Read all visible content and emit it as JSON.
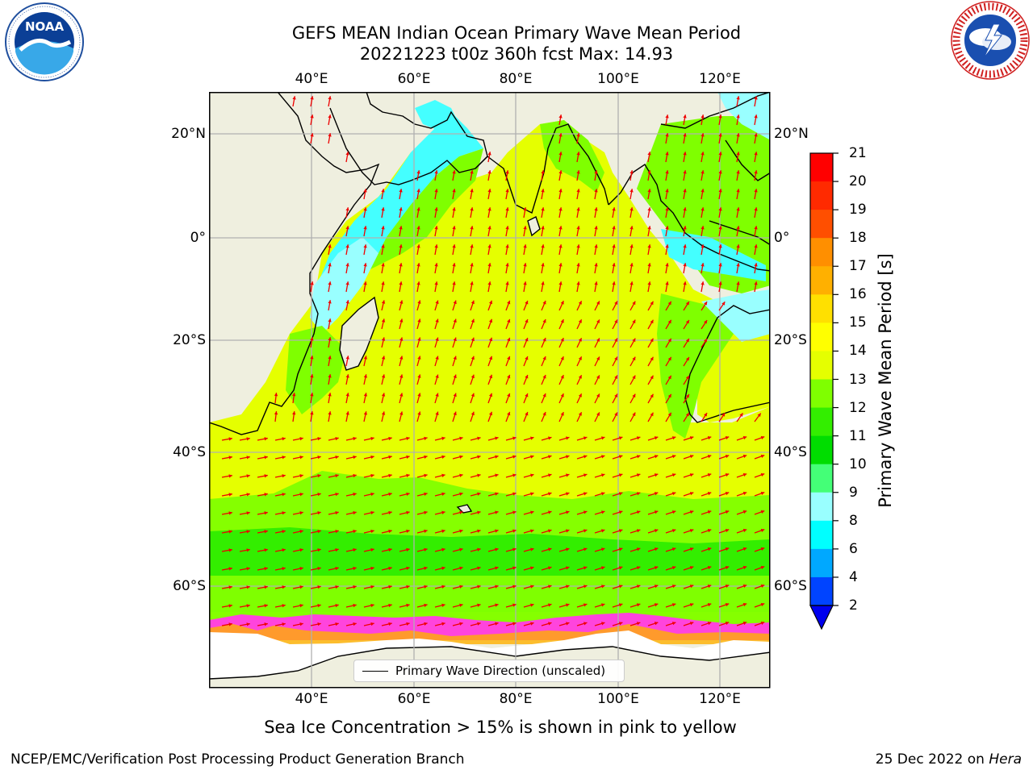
{
  "title": {
    "line1": "GEFS MEAN Indian Ocean Primary Wave Mean Period",
    "line2": "20221223 t00z 360h fcst   Max: 14.93"
  },
  "axes": {
    "lon_ticks": [
      "40°E",
      "60°E",
      "80°E",
      "100°E",
      "120°E"
    ],
    "lat_ticks": [
      "20°N",
      "0°",
      "20°S",
      "40°S",
      "60°S"
    ]
  },
  "colorbar": {
    "title": "Primary Wave Mean Period [s]",
    "labels": [
      "21",
      "20",
      "19",
      "18",
      "17",
      "16",
      "15",
      "14",
      "13",
      "12",
      "11",
      "10",
      "9",
      "8",
      "6",
      "4",
      "2"
    ],
    "colors": [
      "#ff0000",
      "#ff2a00",
      "#ff4f00",
      "#ff6f00",
      "#ff8f00",
      "#ffb000",
      "#ffe000",
      "#ffff00",
      "#e5ff00",
      "#c8ff00",
      "#7fff00",
      "#33ee00",
      "#00dd00",
      "#44ff77",
      "#99ffff",
      "#44ffff",
      "#00ffff",
      "#00a8ff",
      "#0044ff"
    ],
    "under_color": "#0000ee"
  },
  "legend": {
    "label": "Primary Wave Direction (unscaled)"
  },
  "ice_note": "Sea Ice Concentration > 15% is shown in pink to yellow",
  "footer": {
    "credit": "NCEP/EMC/Verification Post Processing Product Generation Branch",
    "date": "25 Dec 2022 on",
    "host": "Hera"
  },
  "logos": {
    "left": "NOAA",
    "left_ring": "NATIONAL OCEANIC AND ATMOSPHERIC ADMINISTRATION · U.S. DEPARTMENT OF COMMERCE",
    "right_ring": "NATIONAL WEATHER SERVICE"
  },
  "map_colors": {
    "land": "#efefdf",
    "ice_pink": "#ff44dd",
    "arrow": "#ee0000"
  }
}
